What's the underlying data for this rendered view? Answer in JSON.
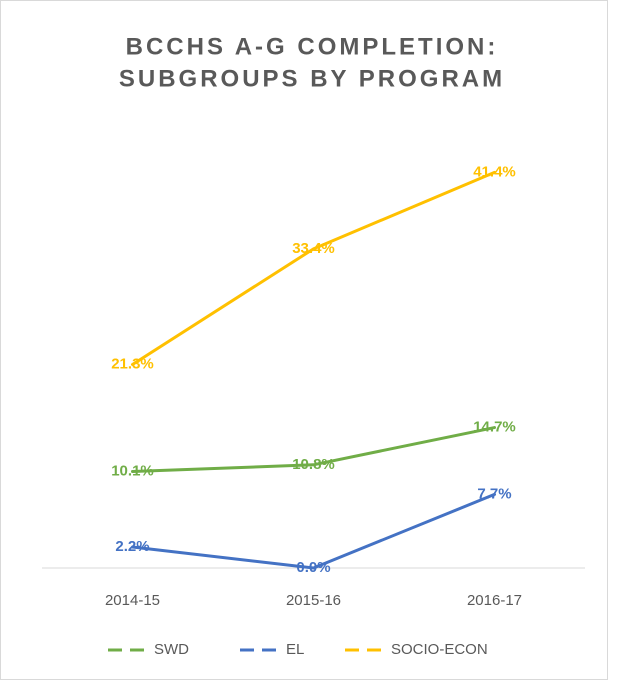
{
  "chart_data": {
    "type": "line",
    "title": [
      "BCCHS A-G COMPLETION:",
      "SUBGROUPS BY PROGRAM"
    ],
    "categories": [
      "2014-15",
      "2015-16",
      "2016-17"
    ],
    "ylim": [
      0,
      45
    ],
    "series": [
      {
        "name": "SWD",
        "color": "#70ad47",
        "values": [
          10.1,
          10.8,
          14.7
        ],
        "value_labels": [
          "10.1%",
          "10.8%",
          "14.7%"
        ]
      },
      {
        "name": "EL",
        "color": "#4472c4",
        "values": [
          2.2,
          0.0,
          7.7
        ],
        "value_labels": [
          "2.2%",
          "0.0%",
          "7.7%"
        ]
      },
      {
        "name": "SOCIO-ECON",
        "color": "#ffc000",
        "values": [
          21.3,
          33.4,
          41.4
        ],
        "value_labels": [
          "21.3%",
          "33.4%",
          "41.4%"
        ]
      }
    ]
  }
}
